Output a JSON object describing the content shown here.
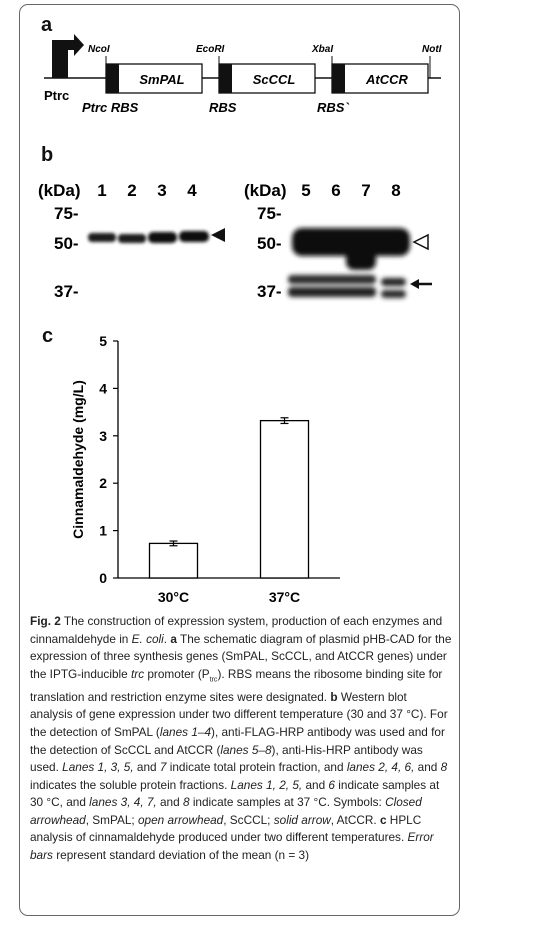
{
  "figure": {
    "panel_labels": [
      "a",
      "b",
      "c"
    ],
    "plasmid": {
      "promoter": "Ptrc",
      "sites": [
        "NcoI",
        "EcoRI",
        "XbaI",
        "NotI"
      ],
      "genes": [
        "SmPAL",
        "ScCCL",
        "AtCCR"
      ],
      "rbs_labels": [
        "Ptrc RBS",
        "RBS",
        "RBS`"
      ]
    },
    "blot": {
      "left": {
        "unit": "(kDa)",
        "lanes": [
          "1",
          "2",
          "3",
          "4"
        ],
        "markers": [
          "75-",
          "50-",
          "37-"
        ]
      },
      "right": {
        "unit": "(kDa)",
        "lanes": [
          "5",
          "6",
          "7",
          "8"
        ],
        "markers": [
          "75-",
          "50-",
          "37-"
        ]
      }
    },
    "caption": {
      "fig_label": "Fig. 2",
      "title": "The construction of expression system, production of each enzymes and cinnamaldehyde in",
      "organism": "E. coli",
      "a_text_1": "The schematic diagram of plasmid pHB-CAD for the expression of three synthesis genes (SmPAL, ScCCL, and AtCCR genes) under the IPTG-inducible",
      "trc": "trc",
      "a_text_2": "promoter (P",
      "trc_sub": "trc",
      "a_text_3": "). RBS means the ribosome binding site for translation and restriction enzyme sites were designated.",
      "b_text_1": "Western blot analysis of gene expression under two different temperature (30 and 37 °C). For the detection of SmPAL (",
      "lanes_1_4": "lanes 1–4",
      "b_text_2": "), anti-FLAG-HRP antibody was used and for the detection of ScCCL and AtCCR (",
      "lanes_5_8": "lanes 5–8",
      "b_text_3": "), anti-His-HRP antibody was used.",
      "lanes_total": "Lanes 1, 3, 5,",
      "b_text_4": "and",
      "lane_7": "7",
      "b_text_5": "indicate total protein fraction, and",
      "lanes_soluble": "lanes 2, 4, 6,",
      "b_text_6": "and",
      "lane_8": "8",
      "b_text_7": "indicates the soluble protein fractions.",
      "lanes_30": "Lanes 1, 2, 5,",
      "b_text_8": "and",
      "lane_6": "6",
      "b_text_9": "indicate samples at 30 °C, and",
      "lanes_37": "lanes 3, 4, 7,",
      "b_text_10": "and",
      "lane_8b": "8",
      "b_text_11": "indicate samples at 37 °C. Symbols:",
      "closed_arrowhead": "Closed arrowhead",
      "b_text_12": ", SmPAL;",
      "open_arrowhead": "open arrowhead",
      "b_text_13": ", ScCCL;",
      "solid_arrow": "solid arrow",
      "b_text_14": ", AtCCR.",
      "c_text_1": "HPLC analysis of cinnamaldehyde produced under two different temperatures.",
      "error_bars": "Error bars",
      "c_text_2": "represent standard deviation of the mean (n = 3)"
    }
  },
  "chart_data": {
    "type": "bar",
    "categories": [
      "30°C",
      "37°C"
    ],
    "values": [
      0.73,
      3.32
    ],
    "errors": [
      0.05,
      0.06
    ],
    "ylabel": "Cinnamaldehyde (mg/L)",
    "xlabel": "",
    "ylim": [
      0,
      5
    ],
    "yticks": [
      "0",
      "1",
      "2",
      "3",
      "4",
      "5"
    ],
    "bar_fill": "#ffffff",
    "bar_stroke": "#000000"
  }
}
